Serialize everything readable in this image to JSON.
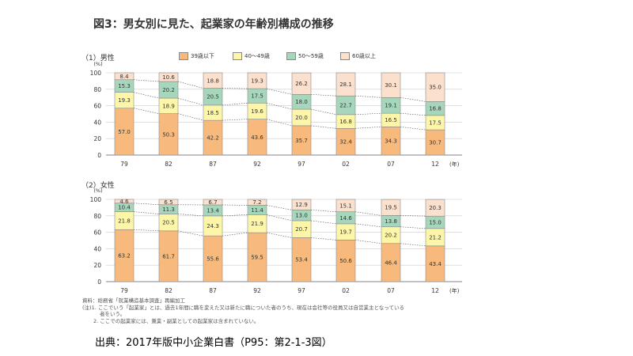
{
  "figure": {
    "title": "図3：男女別に見た、起業家の年齢別構成の推移",
    "source_line": "出典：2017年版中小企業白書（P95：第2-1-3図）",
    "notes": [
      "資料：総務省「就業構造基本調査」再編加工",
      "(注)1. ここでいう「起業家」とは、過去1年間に職を変えた又は新たに職についた者のうち、現在は会社等の役員又は自営業主となっている",
      "者をいう。",
      "2. ここでの起業家には、兼業・副業としての起業家は含まれていない。"
    ],
    "colors": {
      "age_39_under": "#F8BA7C",
      "age_40_49": "#FDF6A8",
      "age_50_59": "#A6D6BC",
      "age_60_over": "#FBE0CE",
      "bar_stroke": "#8a8a8a",
      "grid": "#cccccc",
      "connector": "#555555"
    }
  },
  "chart_data": [
    {
      "type": "bar",
      "stacked": true,
      "panel_label": "（1）男性",
      "y_unit": "(%)",
      "categories": [
        "79",
        "82",
        "87",
        "92",
        "97",
        "02",
        "07",
        "12"
      ],
      "x_unit_label": "(年)",
      "ylim": [
        0,
        100
      ],
      "yticks": [
        0,
        20,
        40,
        60,
        80,
        100
      ],
      "legend_position": "top",
      "series": [
        {
          "name": "39歳以下",
          "values": [
            57.0,
            50.3,
            42.2,
            43.6,
            35.7,
            32.4,
            34.3,
            30.7
          ]
        },
        {
          "name": "40～49歳",
          "values": [
            19.3,
            18.9,
            18.5,
            19.6,
            20.0,
            16.8,
            16.5,
            17.5
          ]
        },
        {
          "name": "50～59歳",
          "values": [
            15.3,
            20.2,
            20.5,
            17.5,
            18.0,
            22.7,
            19.1,
            16.8
          ]
        },
        {
          "name": "60歳以上",
          "values": [
            8.4,
            10.6,
            18.8,
            19.3,
            26.2,
            28.1,
            30.1,
            35.0
          ]
        }
      ]
    },
    {
      "type": "bar",
      "stacked": true,
      "panel_label": "（2）女性",
      "y_unit": "(%)",
      "categories": [
        "79",
        "82",
        "87",
        "92",
        "97",
        "02",
        "07",
        "12"
      ],
      "x_unit_label": "(年)",
      "ylim": [
        0,
        100
      ],
      "yticks": [
        0,
        20,
        40,
        60,
        80,
        100
      ],
      "series": [
        {
          "name": "39歳以下",
          "values": [
            63.2,
            61.7,
            55.6,
            59.5,
            53.4,
            50.6,
            46.4,
            43.4
          ]
        },
        {
          "name": "40～49歳",
          "values": [
            21.8,
            20.5,
            24.3,
            21.9,
            20.7,
            19.7,
            20.2,
            21.2
          ]
        },
        {
          "name": "50～59歳",
          "values": [
            10.4,
            11.3,
            13.4,
            11.4,
            13.0,
            14.6,
            13.8,
            15.0
          ]
        },
        {
          "name": "60歳以上",
          "values": [
            4.6,
            6.5,
            6.7,
            7.2,
            12.9,
            15.1,
            19.5,
            20.3
          ]
        }
      ]
    }
  ]
}
